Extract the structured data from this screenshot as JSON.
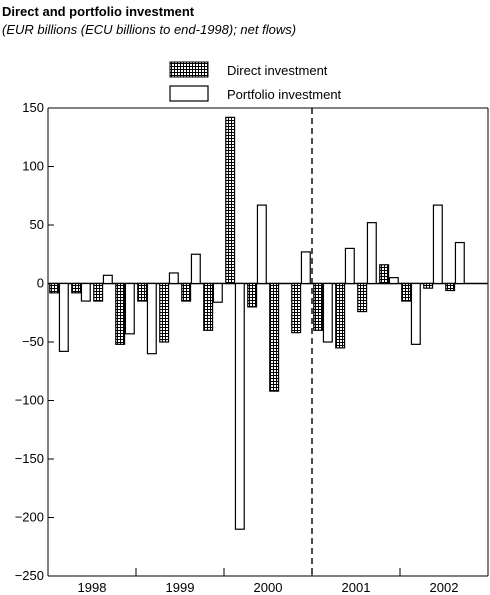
{
  "title": "Direct and portfolio investment",
  "subtitle": "(EUR billions (ECU billions to end-1998); net flows)",
  "chart_data": {
    "type": "bar",
    "title": "Direct and portfolio investment",
    "subtitle": "(EUR billions (ECU billions to end-1998); net flows)",
    "xlabel": "",
    "ylabel": "",
    "ylim": [
      -250,
      150
    ],
    "yticks": [
      150,
      100,
      50,
      0,
      -50,
      -100,
      -150,
      -200,
      -250
    ],
    "ytick_labels": [
      "150",
      "100",
      "50",
      "0",
      "−50",
      "−100",
      "−150",
      "−200",
      "−250"
    ],
    "years": [
      "1998",
      "1999",
      "2000",
      "2001",
      "2002"
    ],
    "categories": [
      "1998 Q1",
      "1998 Q2",
      "1998 Q3",
      "1998 Q4",
      "1999 Q1",
      "1999 Q2",
      "1999 Q3",
      "1999 Q4",
      "2000 Q1",
      "2000 Q2",
      "2000 Q3",
      "2000 Q4",
      "2001 Q1",
      "2001 Q2",
      "2001 Q3",
      "2001 Q4",
      "2002 Q1",
      "2002 Q2",
      "2002 Q3",
      "2002 Q4"
    ],
    "series": [
      {
        "name": "Direct investment",
        "pattern": "crosshatch",
        "values": [
          -8,
          -8,
          -15,
          -52,
          -15,
          -50,
          -15,
          -40,
          142,
          -20,
          -92,
          -42,
          -40,
          -55,
          -24,
          16,
          -15,
          -4,
          -6,
          0
        ]
      },
      {
        "name": "Portfolio investment",
        "pattern": "hollow",
        "values": [
          -58,
          -15,
          7,
          -43,
          -60,
          9,
          25,
          -16,
          -210,
          67,
          0,
          27,
          -50,
          30,
          52,
          5,
          -52,
          67,
          35,
          0
        ]
      }
    ],
    "vertical_marker_after": "2000",
    "legend_position": "top",
    "grid": false
  },
  "colors": {
    "bar_fill": "#ffffff",
    "hatch": "#000000",
    "axis": "#000000"
  }
}
